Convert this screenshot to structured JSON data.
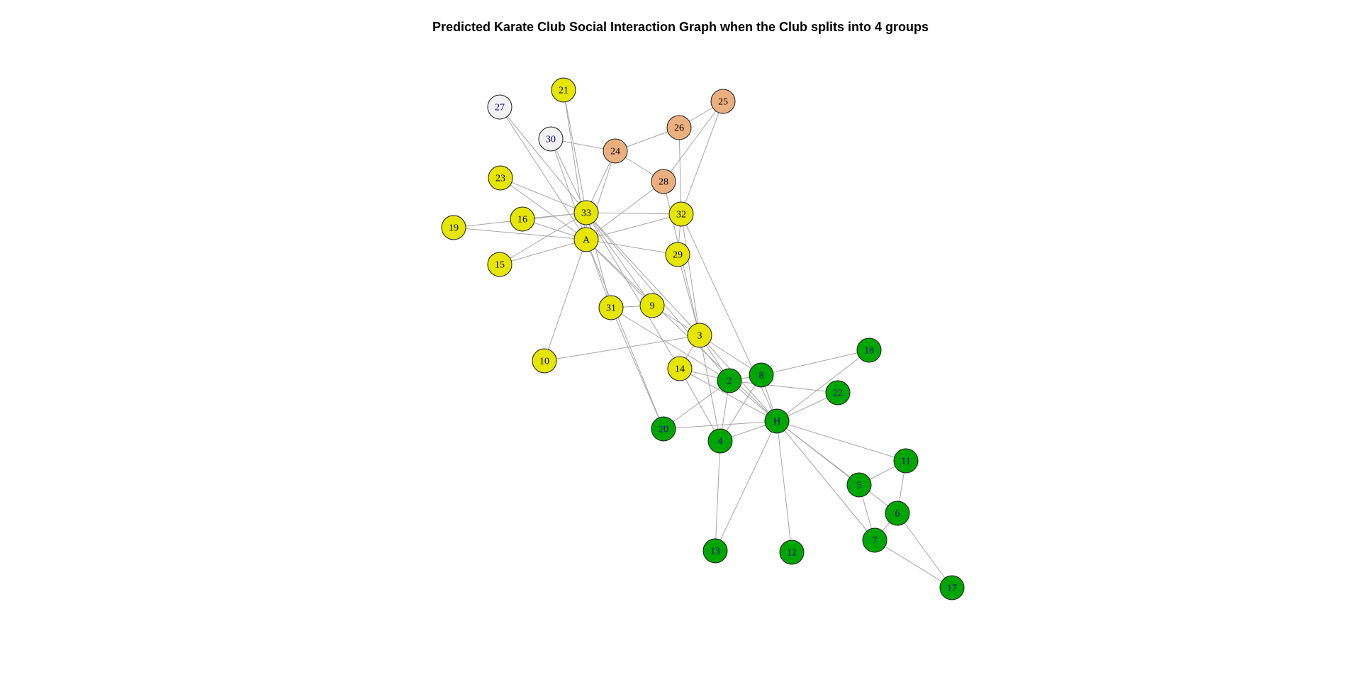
{
  "title": "Predicted Karate Club Social Interaction Graph when the Club splits into 4 groups",
  "colors": {
    "group_yellow": "#e6e600",
    "group_green": "#00a600",
    "group_orange": "#ebb07f",
    "group_white": "#f2f2f2",
    "edge": "#a6a6a6",
    "label_default": "#000000",
    "label_blue": "#00008b"
  },
  "nodes": [
    {
      "id": "A",
      "label": "A",
      "group": "group_yellow"
    },
    {
      "id": "33",
      "label": "33",
      "group": "group_yellow"
    },
    {
      "id": "32",
      "label": "32",
      "group": "group_yellow"
    },
    {
      "id": "29",
      "label": "29",
      "group": "group_yellow"
    },
    {
      "id": "31",
      "label": "31",
      "group": "group_yellow"
    },
    {
      "id": "9",
      "label": "9",
      "group": "group_yellow"
    },
    {
      "id": "3",
      "label": "3",
      "group": "group_yellow"
    },
    {
      "id": "14",
      "label": "14",
      "group": "group_yellow"
    },
    {
      "id": "10",
      "label": "10",
      "group": "group_yellow"
    },
    {
      "id": "15",
      "label": "15",
      "group": "group_yellow"
    },
    {
      "id": "16",
      "label": "16",
      "group": "group_yellow"
    },
    {
      "id": "19",
      "label": "19",
      "group": "group_yellow"
    },
    {
      "id": "21",
      "label": "21",
      "group": "group_yellow"
    },
    {
      "id": "23",
      "label": "23",
      "group": "group_yellow"
    },
    {
      "id": "24",
      "label": "24",
      "group": "group_orange"
    },
    {
      "id": "25",
      "label": "25",
      "group": "group_orange"
    },
    {
      "id": "26",
      "label": "26",
      "group": "group_orange"
    },
    {
      "id": "28",
      "label": "28",
      "group": "group_orange"
    },
    {
      "id": "27",
      "label": "27",
      "group": "group_white",
      "label_color": "label_blue"
    },
    {
      "id": "30",
      "label": "30",
      "group": "group_white",
      "label_color": "label_blue"
    },
    {
      "id": "H",
      "label": "H",
      "group": "group_green",
      "label_color": "label_blue"
    },
    {
      "id": "2",
      "label": "2",
      "group": "group_green",
      "label_color": "label_blue"
    },
    {
      "id": "4",
      "label": "4",
      "group": "group_green",
      "label_color": "label_blue"
    },
    {
      "id": "8",
      "label": "8",
      "group": "group_green",
      "label_color": "label_blue"
    },
    {
      "id": "18",
      "label": "18",
      "group": "group_green",
      "label_color": "label_blue"
    },
    {
      "id": "22",
      "label": "22",
      "group": "group_green",
      "label_color": "label_blue"
    },
    {
      "id": "20",
      "label": "20",
      "group": "group_green",
      "label_color": "label_blue"
    },
    {
      "id": "13",
      "label": "13",
      "group": "group_green",
      "label_color": "label_blue"
    },
    {
      "id": "12",
      "label": "12",
      "group": "group_green",
      "label_color": "label_blue"
    },
    {
      "id": "11",
      "label": "11",
      "group": "group_green",
      "label_color": "label_blue"
    },
    {
      "id": "5",
      "label": "5",
      "group": "group_green",
      "label_color": "label_blue"
    },
    {
      "id": "6",
      "label": "6",
      "group": "group_green",
      "label_color": "label_blue"
    },
    {
      "id": "7",
      "label": "7",
      "group": "group_green",
      "label_color": "label_blue"
    },
    {
      "id": "17",
      "label": "17",
      "group": "group_green",
      "label_color": "label_blue"
    }
  ],
  "edges": [
    [
      "27",
      "33"
    ],
    [
      "27",
      "A"
    ],
    [
      "30",
      "24"
    ],
    [
      "30",
      "33"
    ],
    [
      "30",
      "A"
    ],
    [
      "21",
      "33"
    ],
    [
      "21",
      "A"
    ],
    [
      "24",
      "33"
    ],
    [
      "24",
      "26"
    ],
    [
      "24",
      "28"
    ],
    [
      "24",
      "A"
    ],
    [
      "25",
      "26"
    ],
    [
      "25",
      "28"
    ],
    [
      "25",
      "32"
    ],
    [
      "26",
      "32"
    ],
    [
      "28",
      "A"
    ],
    [
      "28",
      "3"
    ],
    [
      "23",
      "33"
    ],
    [
      "23",
      "A"
    ],
    [
      "16",
      "33"
    ],
    [
      "16",
      "A"
    ],
    [
      "19",
      "33"
    ],
    [
      "19",
      "A"
    ],
    [
      "15",
      "33"
    ],
    [
      "15",
      "A"
    ],
    [
      "33",
      "32"
    ],
    [
      "33",
      "A"
    ],
    [
      "33",
      "31"
    ],
    [
      "33",
      "9"
    ],
    [
      "33",
      "3"
    ],
    [
      "33",
      "2"
    ],
    [
      "33",
      "14"
    ],
    [
      "A",
      "32"
    ],
    [
      "A",
      "29"
    ],
    [
      "A",
      "31"
    ],
    [
      "A",
      "9"
    ],
    [
      "A",
      "10"
    ],
    [
      "A",
      "20"
    ],
    [
      "A",
      "H"
    ],
    [
      "32",
      "29"
    ],
    [
      "32",
      "3"
    ],
    [
      "32",
      "H"
    ],
    [
      "29",
      "3"
    ],
    [
      "31",
      "9"
    ],
    [
      "31",
      "2"
    ],
    [
      "31",
      "20"
    ],
    [
      "9",
      "3"
    ],
    [
      "10",
      "3"
    ],
    [
      "3",
      "14"
    ],
    [
      "3",
      "2"
    ],
    [
      "3",
      "8"
    ],
    [
      "3",
      "4"
    ],
    [
      "3",
      "H"
    ],
    [
      "14",
      "2"
    ],
    [
      "14",
      "4"
    ],
    [
      "14",
      "H"
    ],
    [
      "2",
      "8"
    ],
    [
      "2",
      "H"
    ],
    [
      "2",
      "4"
    ],
    [
      "2",
      "22"
    ],
    [
      "2",
      "20"
    ],
    [
      "8",
      "H"
    ],
    [
      "8",
      "18"
    ],
    [
      "8",
      "4"
    ],
    [
      "H",
      "18"
    ],
    [
      "H",
      "22"
    ],
    [
      "H",
      "20"
    ],
    [
      "H",
      "4"
    ],
    [
      "H",
      "13"
    ],
    [
      "H",
      "12"
    ],
    [
      "H",
      "11"
    ],
    [
      "H",
      "5"
    ],
    [
      "H",
      "6"
    ],
    [
      "H",
      "7"
    ],
    [
      "4",
      "13"
    ],
    [
      "11",
      "5"
    ],
    [
      "11",
      "6"
    ],
    [
      "5",
      "7"
    ],
    [
      "6",
      "7"
    ],
    [
      "6",
      "17"
    ],
    [
      "7",
      "17"
    ]
  ]
}
